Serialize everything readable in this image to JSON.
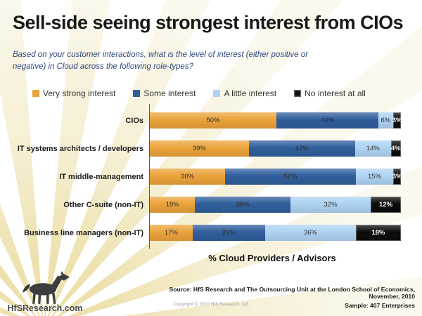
{
  "title": "Sell-side seeing strongest interest from CIOs",
  "question": "Based on your customer interactions, what is the level of interest (either positive or negative) in Cloud across the following role-types?",
  "chart_data": {
    "type": "bar",
    "orientation": "horizontal",
    "stacked": true,
    "grid": false,
    "legend_position": "top",
    "value_suffix": "%",
    "xlabel": "% Cloud Providers / Advisors",
    "xlim": [
      0,
      100
    ],
    "categories": [
      "CIOs",
      "IT systems architects / developers",
      "IT middle-management",
      "Other C-suite (non-IT)",
      "Business line managers (non-IT)"
    ],
    "series": [
      {
        "name": "Very strong interest",
        "color": "#EBA33B",
        "label_color": "#333333",
        "values": [
          50,
          39,
          30,
          18,
          17
        ]
      },
      {
        "name": "Some interest",
        "color": "#305E9C",
        "label_color": "#2b2b2b",
        "values": [
          40,
          42,
          52,
          38,
          29
        ]
      },
      {
        "name": "A little interest",
        "color": "#AED3F3",
        "label_color": "#333333",
        "values": [
          6,
          14,
          15,
          32,
          36
        ]
      },
      {
        "name": "No interest at all",
        "color": "#0C0C0C",
        "label_color": "#FFFFFF",
        "values": [
          3,
          4,
          3,
          12,
          18
        ]
      }
    ]
  },
  "footer": {
    "source_line": "Source:  HfS Research and  The Outsourcing Unit at the London School of Economics, November, 2010",
    "sample_line": "Sample:  407 Enterprises",
    "copyright": "Copyright © 2010 HfS Research, Ltd.",
    "logo_text": "HfSResearch.com",
    "logo_icon": "horse-icon"
  }
}
